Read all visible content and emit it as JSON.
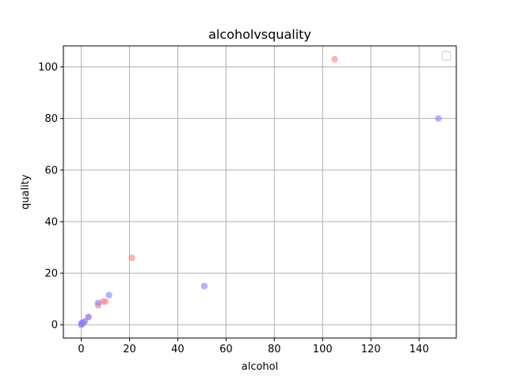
{
  "chart_data": {
    "type": "scatter",
    "title": "alcoholvsquality",
    "xlabel": "alcohol",
    "ylabel": "quality",
    "xlim": [
      -7.4,
      155.4
    ],
    "ylim": [
      -5.15,
      108.15
    ],
    "xticks": [
      0,
      20,
      40,
      60,
      80,
      100,
      120,
      140
    ],
    "yticks": [
      0,
      20,
      40,
      60,
      80,
      100
    ],
    "grid": true,
    "legend": {
      "position": "top-right",
      "entries": []
    },
    "series": [
      {
        "color": "#ff8080",
        "points": [
          {
            "x": 105.0,
            "y": 103.0
          },
          {
            "x": 21.0,
            "y": 26.0
          },
          {
            "x": 9.0,
            "y": 9.0
          },
          {
            "x": 10.0,
            "y": 9.0
          },
          {
            "x": 7.0,
            "y": 7.5
          },
          {
            "x": 3.0,
            "y": 3.0
          },
          {
            "x": 1.0,
            "y": 1.0
          },
          {
            "x": 0.3,
            "y": 0.3
          }
        ]
      },
      {
        "color": "#8080ff",
        "points": [
          {
            "x": 148.0,
            "y": 80.0
          },
          {
            "x": 51.0,
            "y": 15.0
          },
          {
            "x": 11.5,
            "y": 11.5
          },
          {
            "x": 7.0,
            "y": 8.5
          },
          {
            "x": 3.0,
            "y": 3.0
          },
          {
            "x": 1.5,
            "y": 1.3
          },
          {
            "x": 0.5,
            "y": 0.5
          },
          {
            "x": 0.0,
            "y": 0.0
          },
          {
            "x": 0.2,
            "y": 0.7
          }
        ]
      }
    ]
  }
}
